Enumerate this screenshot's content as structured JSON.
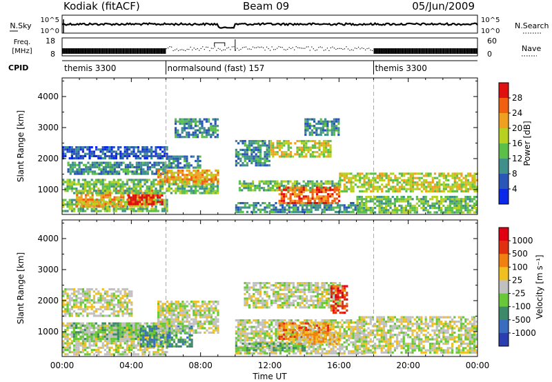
{
  "header": {
    "station": "Kodiak (fitACF)",
    "beam": "Beam 09",
    "date": "05/Jun/2009"
  },
  "top_strip": {
    "left_label": "N.Sky",
    "right_label": "N.Search",
    "y_ticks": [
      "10^5",
      "10^0"
    ]
  },
  "freq_strip": {
    "left_label_1": "Freq.",
    "left_label_2": "[MHz]",
    "left_ticks": [
      "18",
      "8"
    ],
    "right_ticks": [
      "60",
      "0"
    ],
    "right_label": "Nave"
  },
  "cpid": {
    "label": "CPID",
    "segments": [
      {
        "name": "themis 3300",
        "start_hour": 0
      },
      {
        "name": "normalsound (fast) 157",
        "start_hour": 6
      },
      {
        "name": "themis 3300",
        "start_hour": 18
      }
    ]
  },
  "colors": {
    "power": [
      "#0b28e8",
      "#2a56b8",
      "#3f8f8a",
      "#5bbf4a",
      "#b8d020",
      "#f0a020",
      "#f06010",
      "#e01010"
    ],
    "velocity": [
      "#2a3eb0",
      "#3a6cc0",
      "#3c8a6a",
      "#68c838",
      "#c0c0c0",
      "#f0c020",
      "#f08010",
      "#e03010",
      "#e00010"
    ]
  },
  "chart_data": [
    {
      "type": "heatmap",
      "quantity": "power",
      "ylabel": "Slant Range [km]",
      "ylim": [
        200,
        4600
      ],
      "y_ticks": [
        1000,
        2000,
        3000,
        4000
      ],
      "xlim": [
        0,
        24
      ],
      "colorbar": {
        "label": "Power [dB]",
        "range": [
          0,
          32
        ],
        "ticks": [
          "4",
          "8",
          "12",
          "16",
          "20",
          "24",
          "28"
        ]
      },
      "gaps": [
        [
          9.0,
          9.4
        ],
        [
          9.6,
          10.0
        ]
      ],
      "regions": [
        {
          "t": [
            0.0,
            6.0
          ],
          "r": [
            300,
            700
          ],
          "level": 3
        },
        {
          "t": [
            0.8,
            5.5
          ],
          "r": [
            500,
            1000
          ],
          "level": 5
        },
        {
          "t": [
            3.8,
            5.8
          ],
          "r": [
            550,
            850
          ],
          "level": 7
        },
        {
          "t": [
            0.0,
            9.0
          ],
          "r": [
            900,
            1350
          ],
          "level": 3
        },
        {
          "t": [
            0.3,
            6.0
          ],
          "r": [
            1500,
            1900
          ],
          "level": 2
        },
        {
          "t": [
            0.0,
            6.0
          ],
          "r": [
            2000,
            2400
          ],
          "level": 1
        },
        {
          "t": [
            5.5,
            9.0
          ],
          "r": [
            1200,
            1650
          ],
          "level": 5
        },
        {
          "t": [
            6.0,
            8.0
          ],
          "r": [
            1700,
            2100
          ],
          "level": 2
        },
        {
          "t": [
            6.5,
            9.0
          ],
          "r": [
            2700,
            3300
          ],
          "level": 2
        },
        {
          "t": [
            10.0,
            17.5
          ],
          "r": [
            300,
            600
          ],
          "level": 2
        },
        {
          "t": [
            10.2,
            16.0
          ],
          "r": [
            1000,
            1300
          ],
          "level": 3
        },
        {
          "t": [
            12.5,
            16.0
          ],
          "r": [
            600,
            1100
          ],
          "level": 6
        },
        {
          "t": [
            10.0,
            12.0
          ],
          "r": [
            1800,
            2600
          ],
          "level": 2
        },
        {
          "t": [
            12.0,
            15.5
          ],
          "r": [
            2100,
            2600
          ],
          "level": 4
        },
        {
          "t": [
            14.0,
            16.0
          ],
          "r": [
            2800,
            3300
          ],
          "level": 2
        },
        {
          "t": [
            16.0,
            24.0
          ],
          "r": [
            950,
            1550
          ],
          "level": 4
        },
        {
          "t": [
            17.0,
            24.0
          ],
          "r": [
            300,
            800
          ],
          "level": 3
        }
      ]
    },
    {
      "type": "heatmap",
      "quantity": "velocity",
      "ylabel": "Slant Range [km]",
      "xlabel": "Time UT",
      "ylim": [
        200,
        4600
      ],
      "y_ticks": [
        1000,
        2000,
        3000,
        4000
      ],
      "xlim": [
        0,
        24
      ],
      "x_ticks": [
        "00:00",
        "04:00",
        "08:00",
        "12:00",
        "16:00",
        "20:00",
        "00:00"
      ],
      "colorbar": {
        "label": "Velocity [m s⁻¹]",
        "ticks": [
          "1000",
          "500",
          "100",
          "25",
          "-25",
          "-100",
          "-500",
          "-1000"
        ]
      },
      "gaps": [
        [
          9.0,
          9.4
        ],
        [
          9.6,
          10.0
        ]
      ],
      "regions": [
        {
          "t": [
            0.0,
            6.0
          ],
          "r": [
            300,
            1300
          ],
          "level": 4
        },
        {
          "t": [
            0.5,
            4.5
          ],
          "r": [
            800,
            1300
          ],
          "level": 3
        },
        {
          "t": [
            4.5,
            7.5
          ],
          "r": [
            500,
            1200
          ],
          "level": 2
        },
        {
          "t": [
            5.5,
            9.0
          ],
          "r": [
            1000,
            2000
          ],
          "level": 4
        },
        {
          "t": [
            0.0,
            4.0
          ],
          "r": [
            1500,
            2400
          ],
          "level": 4
        },
        {
          "t": [
            10.0,
            17.5
          ],
          "r": [
            300,
            1400
          ],
          "level": 4
        },
        {
          "t": [
            10.0,
            14.0
          ],
          "r": [
            400,
            650
          ],
          "level": 3
        },
        {
          "t": [
            12.5,
            15.5
          ],
          "r": [
            800,
            1300
          ],
          "level": 6
        },
        {
          "t": [
            13.5,
            16.0
          ],
          "r": [
            600,
            1000
          ],
          "level": 5
        },
        {
          "t": [
            10.5,
            16.0
          ],
          "r": [
            1800,
            2600
          ],
          "level": 4
        },
        {
          "t": [
            15.5,
            16.5
          ],
          "r": [
            1600,
            2500
          ],
          "level": 7
        },
        {
          "t": [
            17.0,
            24.0
          ],
          "r": [
            300,
            1500
          ],
          "level": 4
        }
      ]
    }
  ]
}
